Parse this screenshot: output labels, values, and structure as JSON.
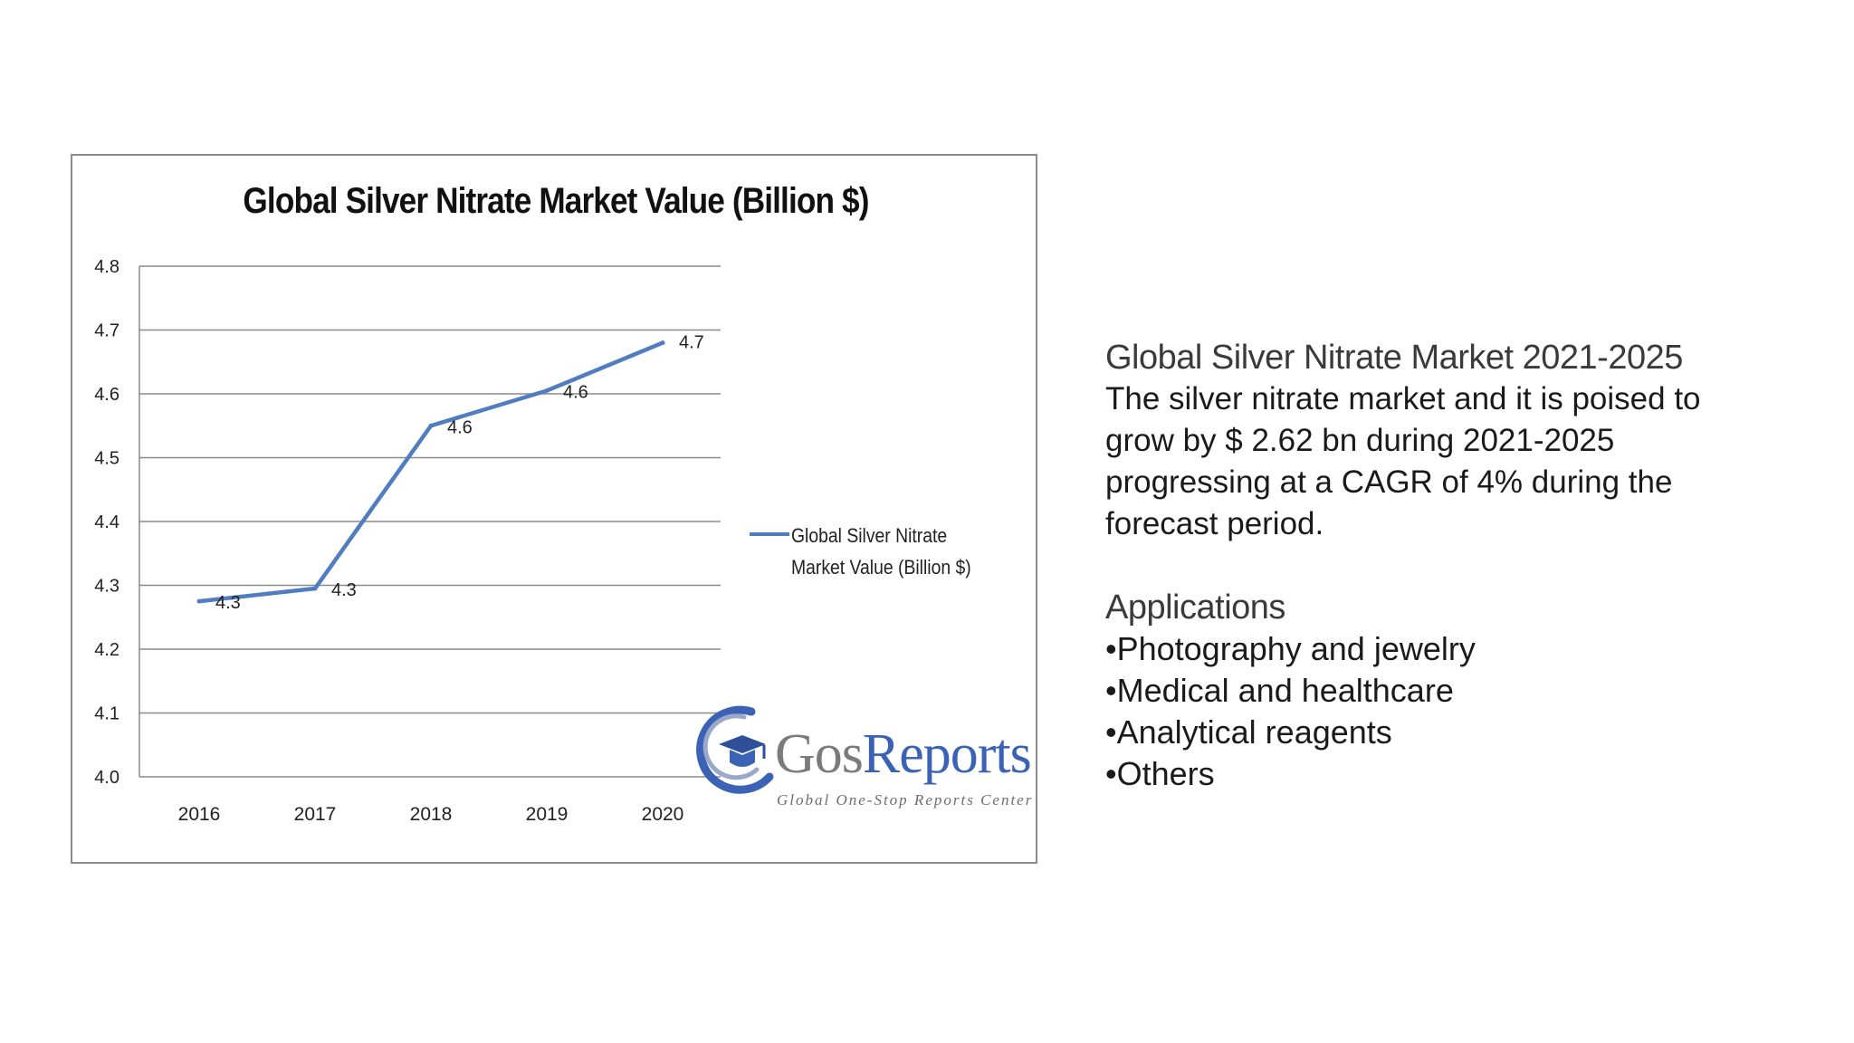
{
  "chart_data": {
    "type": "line",
    "title": "Global Silver Nitrate Market Value (Billion $)",
    "categories": [
      "2016",
      "2017",
      "2018",
      "2019",
      "2020"
    ],
    "series": [
      {
        "name": "Global Silver Nitrate Market Value (Billion $)",
        "values": [
          4.275,
          4.295,
          4.55,
          4.605,
          4.68
        ],
        "data_labels": [
          "4.3",
          "4.3",
          "4.6",
          "4.6",
          "4.7"
        ]
      }
    ],
    "ylim": [
      4.0,
      4.8
    ],
    "yticks": [
      "4.0",
      "4.1",
      "4.2",
      "4.3",
      "4.4",
      "4.5",
      "4.6",
      "4.7",
      "4.8"
    ],
    "xlabel": "",
    "ylabel": "",
    "grid": true,
    "legend_position": "right",
    "line_color": "#4f7dbf"
  },
  "watermark": {
    "name_part1": "Gos",
    "name_part2": "Reports",
    "tagline": "Global One-Stop Reports Center"
  },
  "info": {
    "heading": "Global Silver Nitrate Market 2021-2025",
    "description_lines": [
      "The silver nitrate market and it is poised to",
      "grow by $ 2.62 bn during 2021-2025",
      "progressing at a CAGR of 4% during the",
      "forecast period."
    ],
    "applications_heading": "Applications",
    "applications": [
      "•Photography and jewelry",
      "•Medical and healthcare",
      "•Analytical reagents",
      "•Others"
    ]
  }
}
